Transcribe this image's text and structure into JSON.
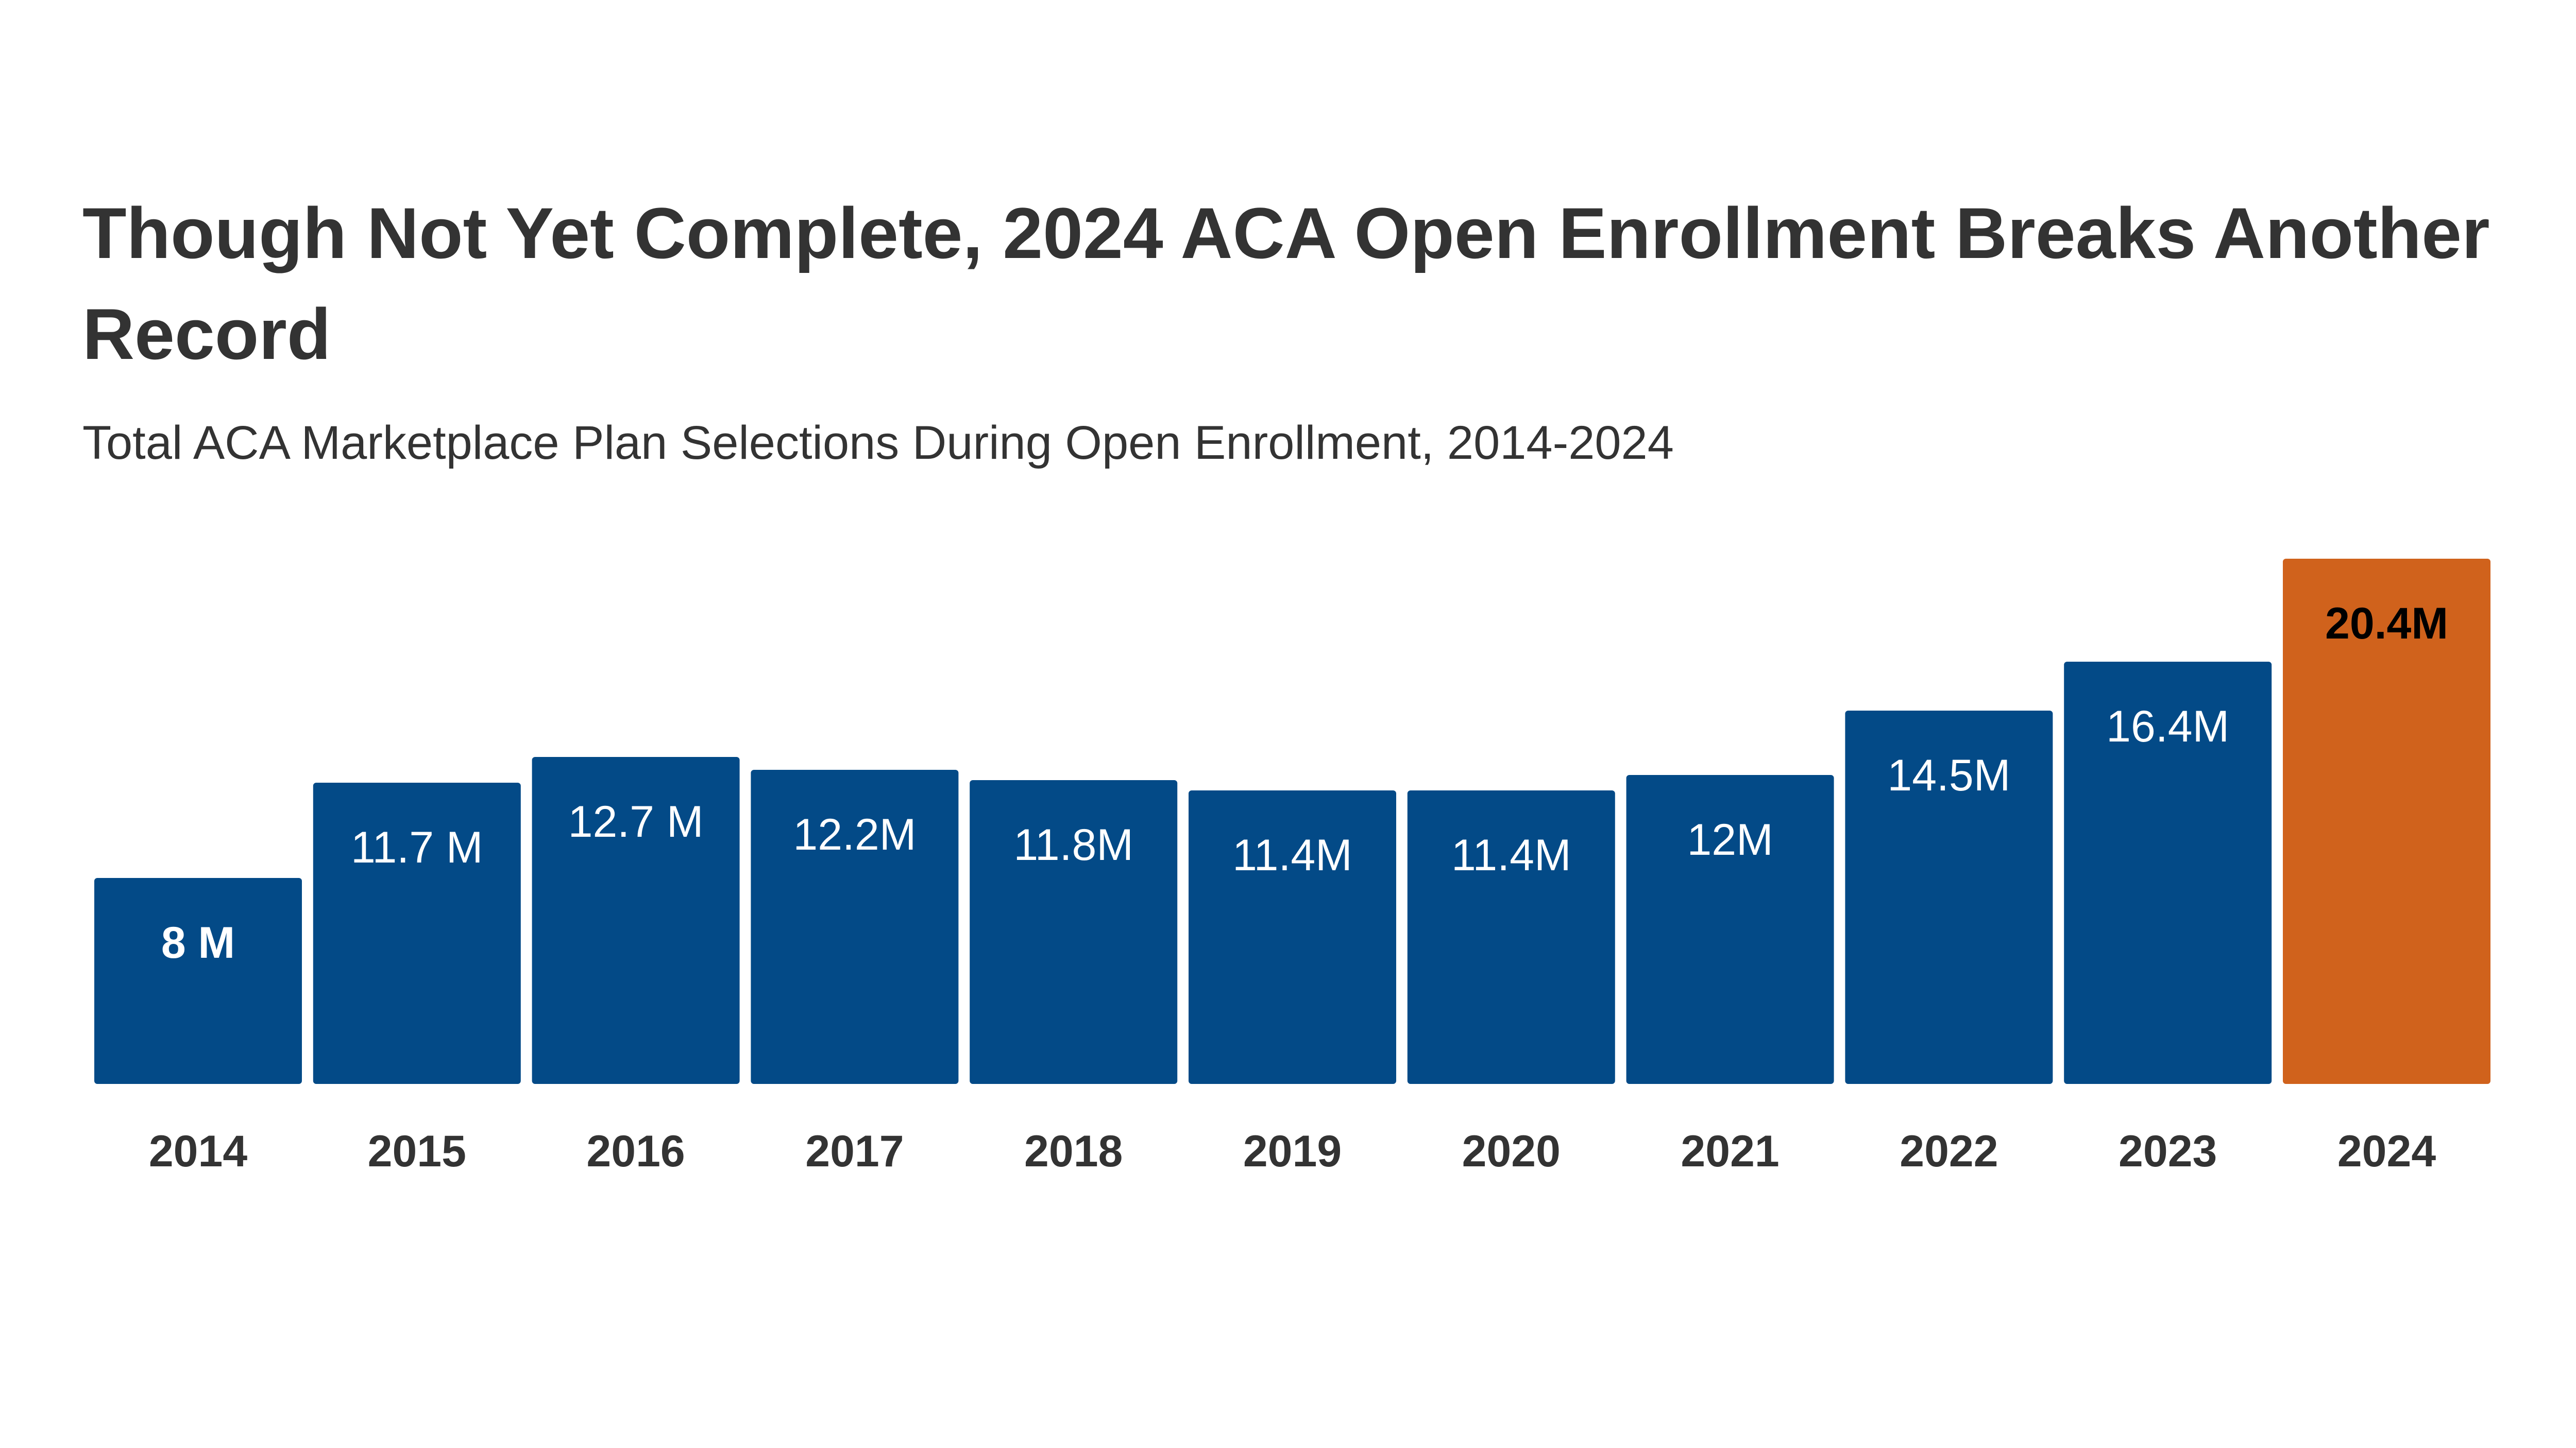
{
  "colors": {
    "bar_default": "#034a87",
    "bar_highlight": "#d0621c",
    "label_on_dark": "#ffffff",
    "label_on_highlight": "#000000",
    "tick_text": "#333333"
  },
  "chart_data": {
    "type": "bar",
    "title": "Though Not Yet Complete, 2024 ACA Open Enrollment Breaks Another Record",
    "subtitle": "Total ACA Marketplace Plan Selections During Open Enrollment, 2014-2024",
    "xlabel": "",
    "ylabel": "",
    "ylim": [
      0,
      20.4
    ],
    "grid": false,
    "legend": "none",
    "unit": "M",
    "categories": [
      "2014",
      "2015",
      "2016",
      "2017",
      "2018",
      "2019",
      "2020",
      "2021",
      "2022",
      "2023",
      "2024"
    ],
    "values": [
      8,
      11.7,
      12.7,
      12.2,
      11.8,
      11.4,
      11.4,
      12,
      14.5,
      16.4,
      20.4
    ],
    "data_labels": [
      "8 M",
      "11.7 M",
      "12.7 M",
      "12.2M",
      "11.8M",
      "11.4M",
      "11.4M",
      "12M",
      "14.5M",
      "16.4M",
      "20.4M"
    ],
    "highlight_index": 10
  }
}
